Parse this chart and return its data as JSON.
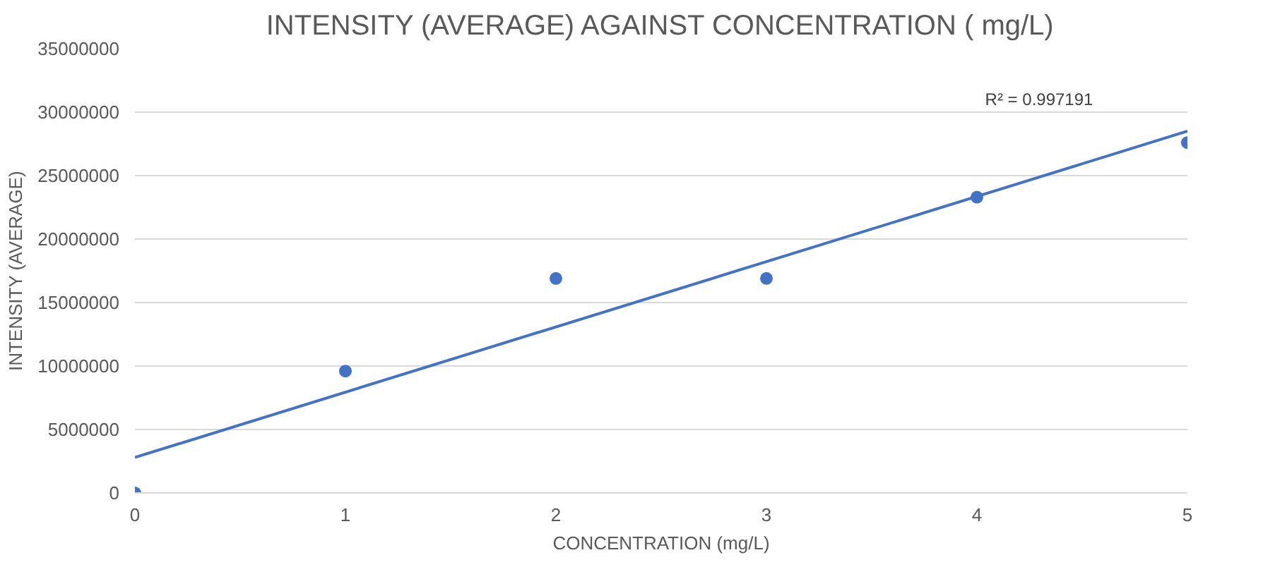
{
  "chart_data": {
    "type": "scatter",
    "title": "INTENSITY (AVERAGE) AGAINST CONCENTRATION ( mg/L)",
    "xlabel": "CONCENTRATION (mg/L)",
    "ylabel": "INTENSITY (AVERAGE)",
    "x": [
      0,
      1,
      2,
      3,
      4,
      5
    ],
    "series": [
      {
        "color": "#4472c4",
        "values": [
          0,
          9600000,
          16900000,
          16900000,
          23300000,
          27600000
        ],
        "marker": "circle"
      },
      {
        "type": "line",
        "color": "#4472c4",
        "x": [
          0,
          5
        ],
        "values": [
          2800000,
          28500000
        ],
        "marker": "none",
        "line_style": "solid"
      }
    ],
    "annotations": [
      "R² = 0.997191"
    ],
    "xlim": [
      0,
      5
    ],
    "xticks": [
      0,
      1,
      2,
      3,
      4,
      5
    ],
    "ylim": [
      0,
      35000000
    ],
    "yticks": [
      0,
      5000000,
      10000000,
      15000000,
      20000000,
      25000000,
      30000000,
      35000000
    ],
    "grid": "y"
  }
}
